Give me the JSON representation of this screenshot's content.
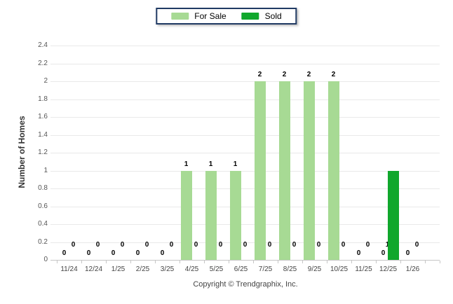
{
  "legend": {
    "items": [
      {
        "label": "For Sale",
        "color": "#a7da94"
      },
      {
        "label": "Sold",
        "color": "#10a72c"
      }
    ]
  },
  "y_axis": {
    "ticks": [
      "0",
      "0.2",
      "0.4",
      "0.6",
      "0.8",
      "1",
      "1.2",
      "1.4",
      "1.6",
      "1.8",
      "2",
      "2.2",
      "2.4"
    ],
    "min": 0,
    "max": 2.4,
    "step": 0.2
  },
  "chart_data": {
    "type": "bar",
    "categories": [
      "11/24",
      "12/24",
      "1/25",
      "2/25",
      "3/25",
      "4/25",
      "5/25",
      "6/25",
      "7/25",
      "8/25",
      "9/25",
      "10/25",
      "11/25",
      "12/25",
      "1/26"
    ],
    "series": [
      {
        "name": "For Sale",
        "color": "#a7da94",
        "values": [
          0,
          0,
          0,
          0,
          0,
          1,
          1,
          1,
          2,
          2,
          2,
          2,
          0,
          0,
          0
        ]
      },
      {
        "name": "Sold",
        "color": "#10a72c",
        "values": [
          0,
          0,
          0,
          0,
          0,
          0,
          0,
          0,
          0,
          0,
          0,
          0,
          0,
          1,
          0
        ]
      }
    ],
    "title": "",
    "xlabel": "",
    "ylabel": "Number of Homes",
    "ylim": [
      0,
      2.4
    ],
    "grid": true,
    "legend_position": "top",
    "value_labels": true
  },
  "footer": {
    "copyright": "Copyright © Trendgraphix, Inc."
  }
}
